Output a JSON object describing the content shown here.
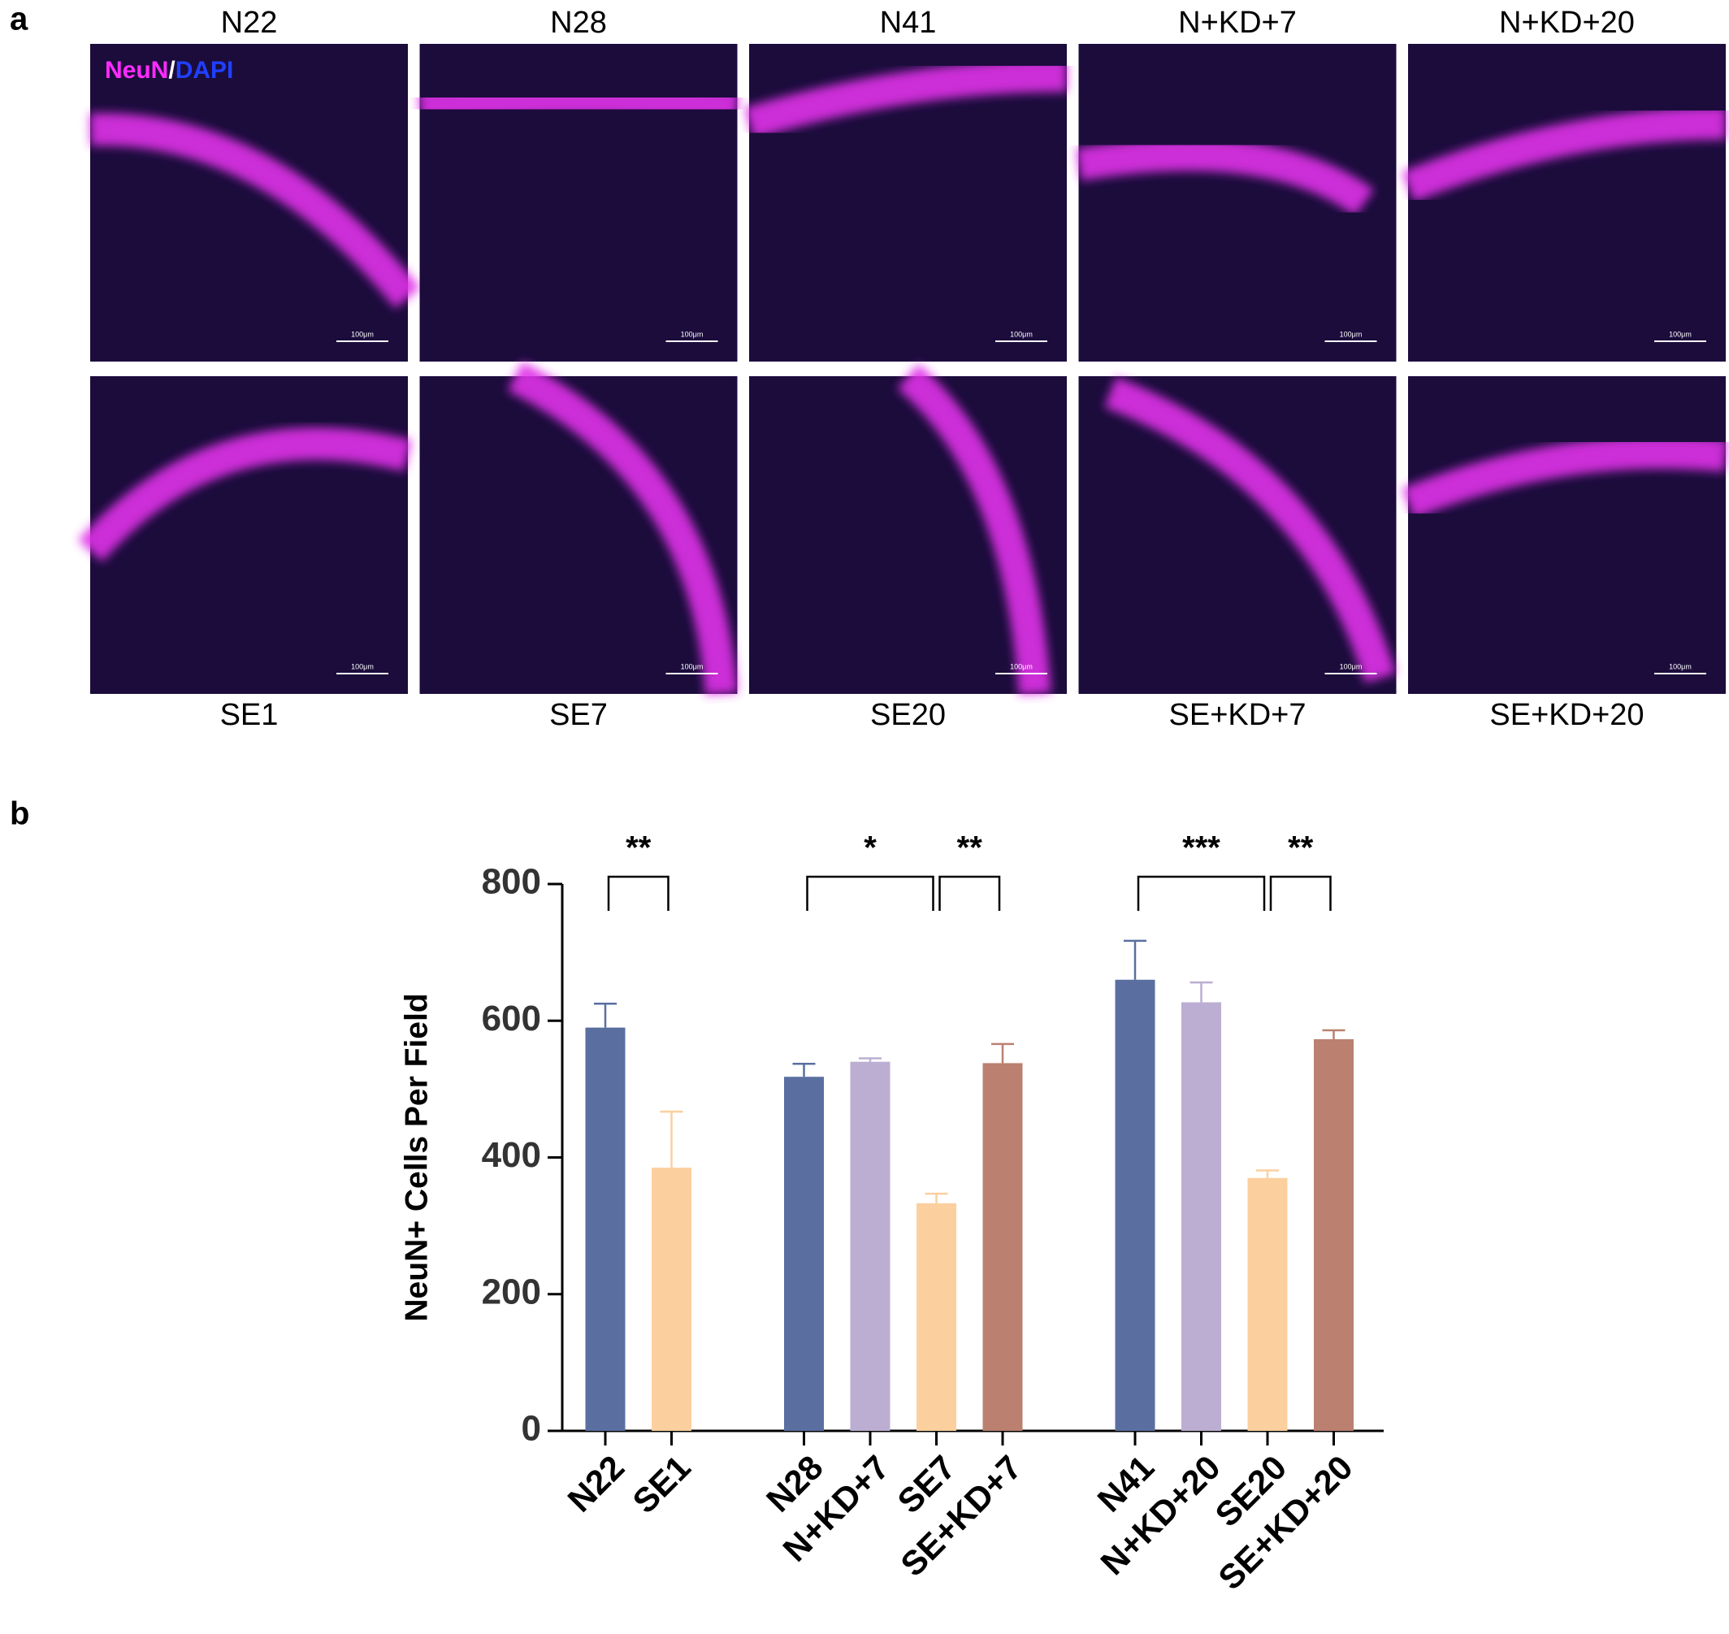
{
  "panel_a": {
    "label": "a",
    "top_labels": [
      "N22",
      "N28",
      "N41",
      "N+KD+7",
      "N+KD+20"
    ],
    "bottom_labels": [
      "SE1",
      "SE7",
      "SE20",
      "SE+KD+7",
      "SE+KD+20"
    ],
    "stain_labels": [
      "NeuN",
      "/",
      "DAPI"
    ],
    "scale_label": "100μm"
  },
  "panel_b": {
    "label": "b",
    "chart_data": {
      "type": "bar",
      "ylabel": "NeuN+ Cells Per Field",
      "ylim": [
        0,
        800
      ],
      "yticks": [
        0,
        200,
        400,
        600,
        800
      ],
      "groups": [
        {
          "categories": [
            "N22",
            "SE1"
          ],
          "values": [
            590,
            385
          ],
          "errors": [
            35,
            82
          ],
          "colors": [
            "#5a6fa0",
            "#fccf9f"
          ]
        },
        {
          "categories": [
            "N28",
            "N+KD+7",
            "SE7",
            "SE+KD+7"
          ],
          "values": [
            518,
            540,
            333,
            538
          ],
          "errors": [
            19,
            5,
            14,
            28
          ],
          "colors": [
            "#5a6fa0",
            "#bcaed2",
            "#fccf9f",
            "#bb8070"
          ]
        },
        {
          "categories": [
            "N41",
            "N+KD+20",
            "SE20",
            "SE+KD+20"
          ],
          "values": [
            660,
            627,
            370,
            573
          ],
          "errors": [
            57,
            29,
            11,
            13
          ],
          "colors": [
            "#5a6fa0",
            "#bcaed2",
            "#fccf9f",
            "#bb8070"
          ]
        }
      ],
      "annotations": [
        {
          "group": 0,
          "from": 0,
          "to": 1,
          "label": "**"
        },
        {
          "group": 1,
          "from": 0,
          "to": 2,
          "label": "*"
        },
        {
          "group": 1,
          "from": 2,
          "to": 3,
          "label": "**"
        },
        {
          "group": 2,
          "from": 0,
          "to": 2,
          "label": "***"
        },
        {
          "group": 2,
          "from": 2,
          "to": 3,
          "label": "**"
        }
      ]
    }
  }
}
